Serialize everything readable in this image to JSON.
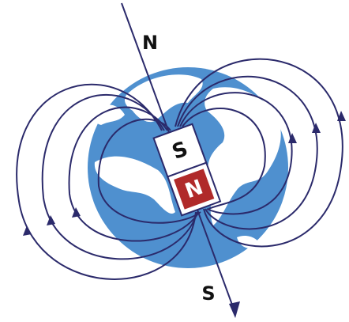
{
  "labels": {
    "axis_north": "N",
    "axis_south": "S",
    "magnet_south": "S",
    "magnet_north": "N"
  }
}
